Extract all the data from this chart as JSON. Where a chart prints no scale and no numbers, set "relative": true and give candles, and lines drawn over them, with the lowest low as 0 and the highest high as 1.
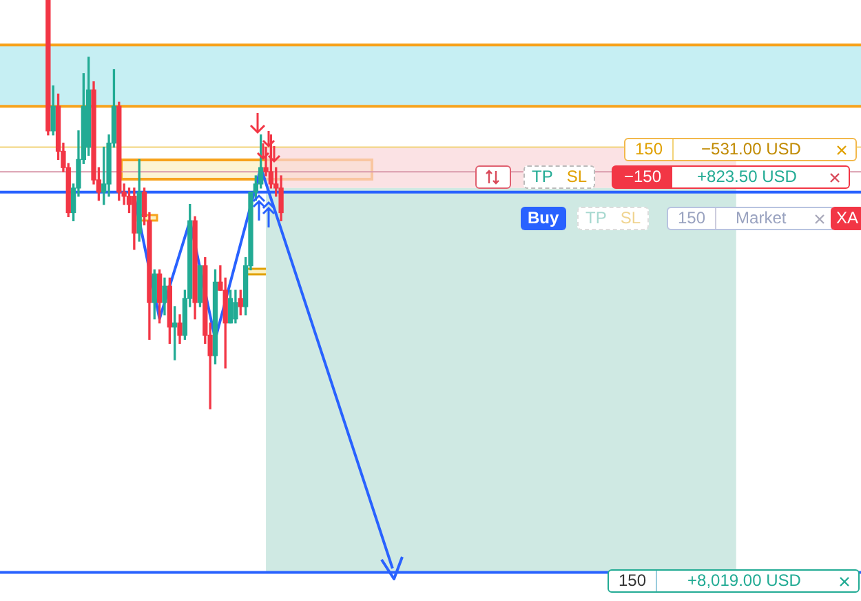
{
  "chart_data": {
    "type": "candlestick",
    "relative": true,
    "categories": [
      null,
      null,
      null,
      null,
      null,
      null,
      null,
      null,
      null,
      null,
      null,
      null,
      null,
      null,
      null,
      null,
      null,
      null,
      null,
      null,
      null,
      null,
      null,
      null,
      null,
      null,
      null,
      null,
      null,
      null,
      null,
      null,
      null,
      null,
      null,
      null,
      null,
      null,
      null,
      null,
      null,
      null,
      null,
      null,
      null,
      null,
      null,
      null,
      null,
      null,
      null,
      null,
      null,
      null,
      null,
      null,
      null,
      null,
      null,
      null,
      null,
      null,
      null,
      null,
      null,
      null,
      null,
      null,
      null,
      null,
      null,
      null,
      null,
      null,
      null,
      null,
      null,
      null,
      null,
      null,
      null,
      null,
      null,
      null,
      null,
      null,
      null,
      null,
      null,
      null,
      null,
      null,
      null,
      null,
      null,
      null,
      null,
      null,
      null,
      null,
      null,
      null,
      null,
      null,
      null,
      null,
      null,
      null,
      null,
      null,
      null,
      null,
      null,
      null,
      null,
      null,
      null,
      null,
      null,
      null,
      null,
      null,
      null,
      null,
      null,
      null,
      null,
      null,
      null,
      null,
      null,
      null,
      null,
      null,
      null,
      null,
      null,
      null,
      null,
      null,
      null,
      null,
      null,
      null,
      null,
      null,
      null,
      null,
      null,
      null,
      null,
      null,
      null,
      null,
      null,
      null,
      null,
      null,
      null,
      null,
      null,
      null,
      null,
      null,
      null,
      null,
      null,
      null,
      null,
      null
    ],
    "ohlc": [
      null,
      null,
      null,
      null,
      null,
      null,
      null,
      null,
      null,
      [
        1.0,
        1.0,
        0.67,
        0.68
      ],
      [
        0.68,
        0.79,
        0.67,
        0.74
      ],
      [
        0.74,
        0.77,
        0.61,
        0.63
      ],
      [
        0.63,
        0.65,
        0.58,
        0.59
      ],
      [
        0.59,
        0.6,
        0.47,
        0.48
      ],
      [
        0.48,
        0.55,
        0.46,
        0.54
      ],
      [
        0.54,
        0.68,
        0.52,
        0.61
      ],
      [
        0.61,
        0.82,
        0.6,
        0.74
      ],
      [
        0.64,
        0.86,
        0.62,
        0.78
      ],
      [
        0.78,
        0.8,
        0.55,
        0.56
      ],
      [
        0.56,
        0.59,
        0.51,
        0.53
      ],
      [
        0.53,
        0.64,
        0.5,
        0.55
      ],
      [
        0.55,
        0.67,
        0.52,
        0.65
      ],
      [
        0.65,
        0.83,
        0.64,
        0.74
      ],
      [
        0.74,
        0.75,
        0.51,
        0.53
      ],
      [
        0.53,
        0.55,
        0.5,
        0.52
      ],
      [
        0.52,
        0.54,
        0.48,
        0.5
      ],
      [
        0.52,
        0.54,
        0.39,
        0.43
      ],
      [
        0.43,
        0.61,
        0.41,
        0.53
      ],
      [
        0.53,
        0.54,
        0.45,
        0.47
      ],
      [
        0.46,
        0.48,
        0.17,
        0.26
      ],
      [
        0.26,
        0.34,
        0.22,
        0.33
      ],
      [
        0.33,
        0.34,
        0.21,
        0.26
      ],
      [
        0.26,
        0.32,
        0.23,
        0.3
      ],
      [
        0.3,
        0.32,
        0.16,
        0.2
      ],
      [
        0.2,
        0.25,
        0.12,
        0.21
      ],
      [
        0.21,
        0.23,
        0.16,
        0.18
      ],
      [
        0.18,
        0.29,
        0.17,
        0.27
      ],
      [
        0.27,
        0.5,
        0.25,
        0.46
      ],
      [
        0.46,
        0.47,
        0.22,
        0.26
      ],
      [
        0.26,
        0.35,
        0.25,
        0.35
      ],
      [
        0.35,
        0.37,
        0.16,
        0.18
      ],
      [
        0.18,
        0.21,
        0.0,
        0.13
      ],
      [
        0.13,
        0.34,
        0.11,
        0.31
      ],
      [
        0.31,
        0.35,
        0.29,
        0.29
      ],
      [
        0.29,
        0.32,
        0.1,
        0.21
      ],
      [
        0.21,
        0.29,
        0.21,
        0.27
      ],
      [
        0.22,
        0.29,
        0.21,
        0.26
      ],
      [
        0.27,
        0.29,
        0.23,
        0.25
      ],
      [
        0.25,
        0.37,
        0.23,
        0.35
      ],
      [
        0.35,
        0.53,
        0.34,
        0.53
      ],
      [
        0.53,
        0.57,
        0.51,
        0.55
      ],
      [
        0.55,
        0.67,
        0.54,
        0.59
      ],
      [
        0.59,
        0.64,
        0.57,
        0.58
      ],
      [
        0.58,
        0.67,
        0.54,
        0.55
      ],
      [
        0.55,
        0.59,
        0.52,
        0.54
      ],
      [
        0.54,
        0.57,
        0.46,
        0.48
      ],
      null,
      null,
      null,
      null,
      null,
      null,
      null,
      null,
      null,
      null,
      null,
      null,
      null,
      null,
      null,
      null,
      null,
      null,
      null,
      null,
      null,
      null,
      null,
      null,
      null,
      null,
      null,
      null,
      null,
      null,
      null,
      null,
      null,
      null,
      null,
      null,
      null,
      null,
      null,
      null,
      null,
      null,
      null,
      null,
      null,
      null,
      null,
      null,
      null,
      null,
      null,
      null,
      null,
      null,
      null,
      null,
      null,
      null,
      null,
      null,
      null,
      null,
      null,
      null,
      null,
      null,
      null,
      null,
      null,
      null,
      null,
      null,
      null,
      null,
      null,
      null,
      null,
      null,
      null,
      null,
      null,
      null,
      null,
      null,
      null,
      null,
      null,
      null,
      null,
      null,
      null,
      null,
      null,
      null,
      null,
      null,
      null,
      null,
      null,
      null,
      null,
      null,
      null,
      null,
      null,
      null,
      null,
      null,
      null,
      null,
      null,
      null,
      null,
      null
    ],
    "colors": [
      null,
      null,
      null,
      null,
      null,
      null,
      null,
      null,
      null,
      "#f23645",
      "#22ab94",
      "#f23645",
      "#f23645",
      "#f23645",
      "#22ab94",
      "#22ab94",
      "#22ab94",
      "#22ab94",
      "#f23645",
      "#f23645",
      "#22ab94",
      "#22ab94",
      "#22ab94",
      "#f23645",
      "#f23645",
      "#f23645",
      "#f23645",
      "#22ab94",
      "#f23645",
      "#f23645",
      "#22ab94",
      "#f23645",
      "#22ab94",
      "#f23645",
      "#22ab94",
      "#f23645",
      "#22ab94",
      "#22ab94",
      "#f23645",
      "#22ab94",
      "#f23645",
      "#f23645",
      "#22ab94",
      "#f23645",
      "#f23645",
      "#22ab94",
      "#22ab94",
      "#f23645",
      "#22ab94",
      "#22ab94",
      "#22ab94",
      "#22ab94",
      "#f23645",
      "#f23645",
      "#f23645",
      "#f23645",
      null,
      null,
      null,
      null,
      null,
      null,
      null,
      null,
      null,
      null,
      null,
      null,
      null,
      null,
      null,
      null,
      null,
      null,
      null,
      null,
      null,
      null,
      null,
      null,
      null,
      null,
      null,
      null,
      null,
      null,
      null,
      null,
      null,
      null,
      null,
      null,
      null,
      null,
      null,
      null,
      null,
      null,
      null,
      null,
      null,
      null,
      null,
      null,
      null,
      null,
      null,
      null,
      null,
      null,
      null,
      null,
      null,
      null,
      null,
      null,
      null,
      null,
      null,
      null,
      null,
      null,
      null,
      null,
      null,
      null,
      null,
      null,
      null,
      null,
      null,
      null,
      null,
      null,
      null,
      null,
      null,
      null,
      null,
      null,
      null,
      null,
      null,
      null,
      null,
      null,
      null,
      null,
      null,
      null,
      null,
      null,
      null,
      null,
      null,
      null,
      null,
      null,
      null,
      null,
      null,
      null,
      null,
      null,
      null,
      null,
      null,
      null,
      null,
      null
    ],
    "series": [
      {
        "type": "line",
        "color": "#2962ff",
        "values": [
          null,
          null,
          null,
          null,
          null,
          null,
          null,
          null,
          null,
          null,
          null,
          null,
          null,
          null,
          null,
          null,
          null,
          null,
          null,
          null,
          null,
          null,
          null,
          null,
          null,
          null,
          0.52,
          null,
          null,
          null,
          null,
          0.22,
          null,
          null,
          null,
          null,
          null,
          0.46,
          null,
          null,
          null,
          null,
          0.17,
          null,
          null,
          null,
          null,
          null,
          null,
          null,
          null,
          0.59,
          null,
          null,
          null,
          null,
          null,
          null,
          null,
          null,
          null,
          null,
          null,
          null,
          null,
          null,
          null,
          null,
          null,
          null,
          null,
          null,
          null,
          null,
          null,
          null,
          null,
          -0.39,
          null,
          null,
          null,
          null,
          null,
          null,
          null,
          null,
          null,
          null,
          null,
          null,
          null,
          null,
          null,
          null,
          null,
          null,
          null,
          null,
          null,
          null,
          null,
          null,
          null,
          null,
          null,
          null,
          null,
          null,
          null,
          null,
          null,
          null,
          null,
          null,
          null,
          null,
          null,
          null,
          null,
          null,
          null,
          null,
          null,
          null,
          null,
          null,
          null,
          null,
          null,
          null,
          null,
          null,
          null,
          null,
          null,
          null,
          null,
          null,
          null,
          null,
          null,
          null,
          null,
          null,
          null,
          null,
          null,
          null,
          null,
          null,
          null,
          null,
          null,
          null,
          null,
          null,
          null,
          null,
          null,
          null,
          null,
          null,
          null,
          null,
          null,
          null,
          null,
          null,
          null,
          null
        ]
      }
    ],
    "bands": [
      {
        "axis": "y",
        "from": 0.74,
        "to": 0.89,
        "color": "#c6eff3"
      },
      {
        "axis": "y",
        "from": 0.54,
        "to": 0.64,
        "color": "#f9d6d8"
      },
      {
        "axis": "y",
        "from": -0.4,
        "to": 0.54,
        "color": "#cfe9e3"
      }
    ],
    "ref_lines": [
      {
        "axis": "y",
        "value": 0.89,
        "color": "#f7a21b"
      },
      {
        "axis": "y",
        "value": 0.74,
        "color": "#f7a21b"
      },
      {
        "axis": "y",
        "value": 0.64,
        "color": "#f2d37a"
      },
      {
        "axis": "y",
        "value": 0.58,
        "color": "#d99aab"
      },
      {
        "axis": "y",
        "value": 0.53,
        "color": "#2962ff"
      },
      {
        "axis": "y",
        "value": -0.4,
        "color": "#2962ff"
      }
    ],
    "annotations": [
      "150",
      "−531.00 USD",
      "TP",
      "SL",
      "−150",
      "+823.50 USD",
      "Buy",
      "TP",
      "SL",
      "150",
      "Market",
      "XA",
      "150",
      "+8,019.00 USD"
    ],
    "legend": false
  }
}
